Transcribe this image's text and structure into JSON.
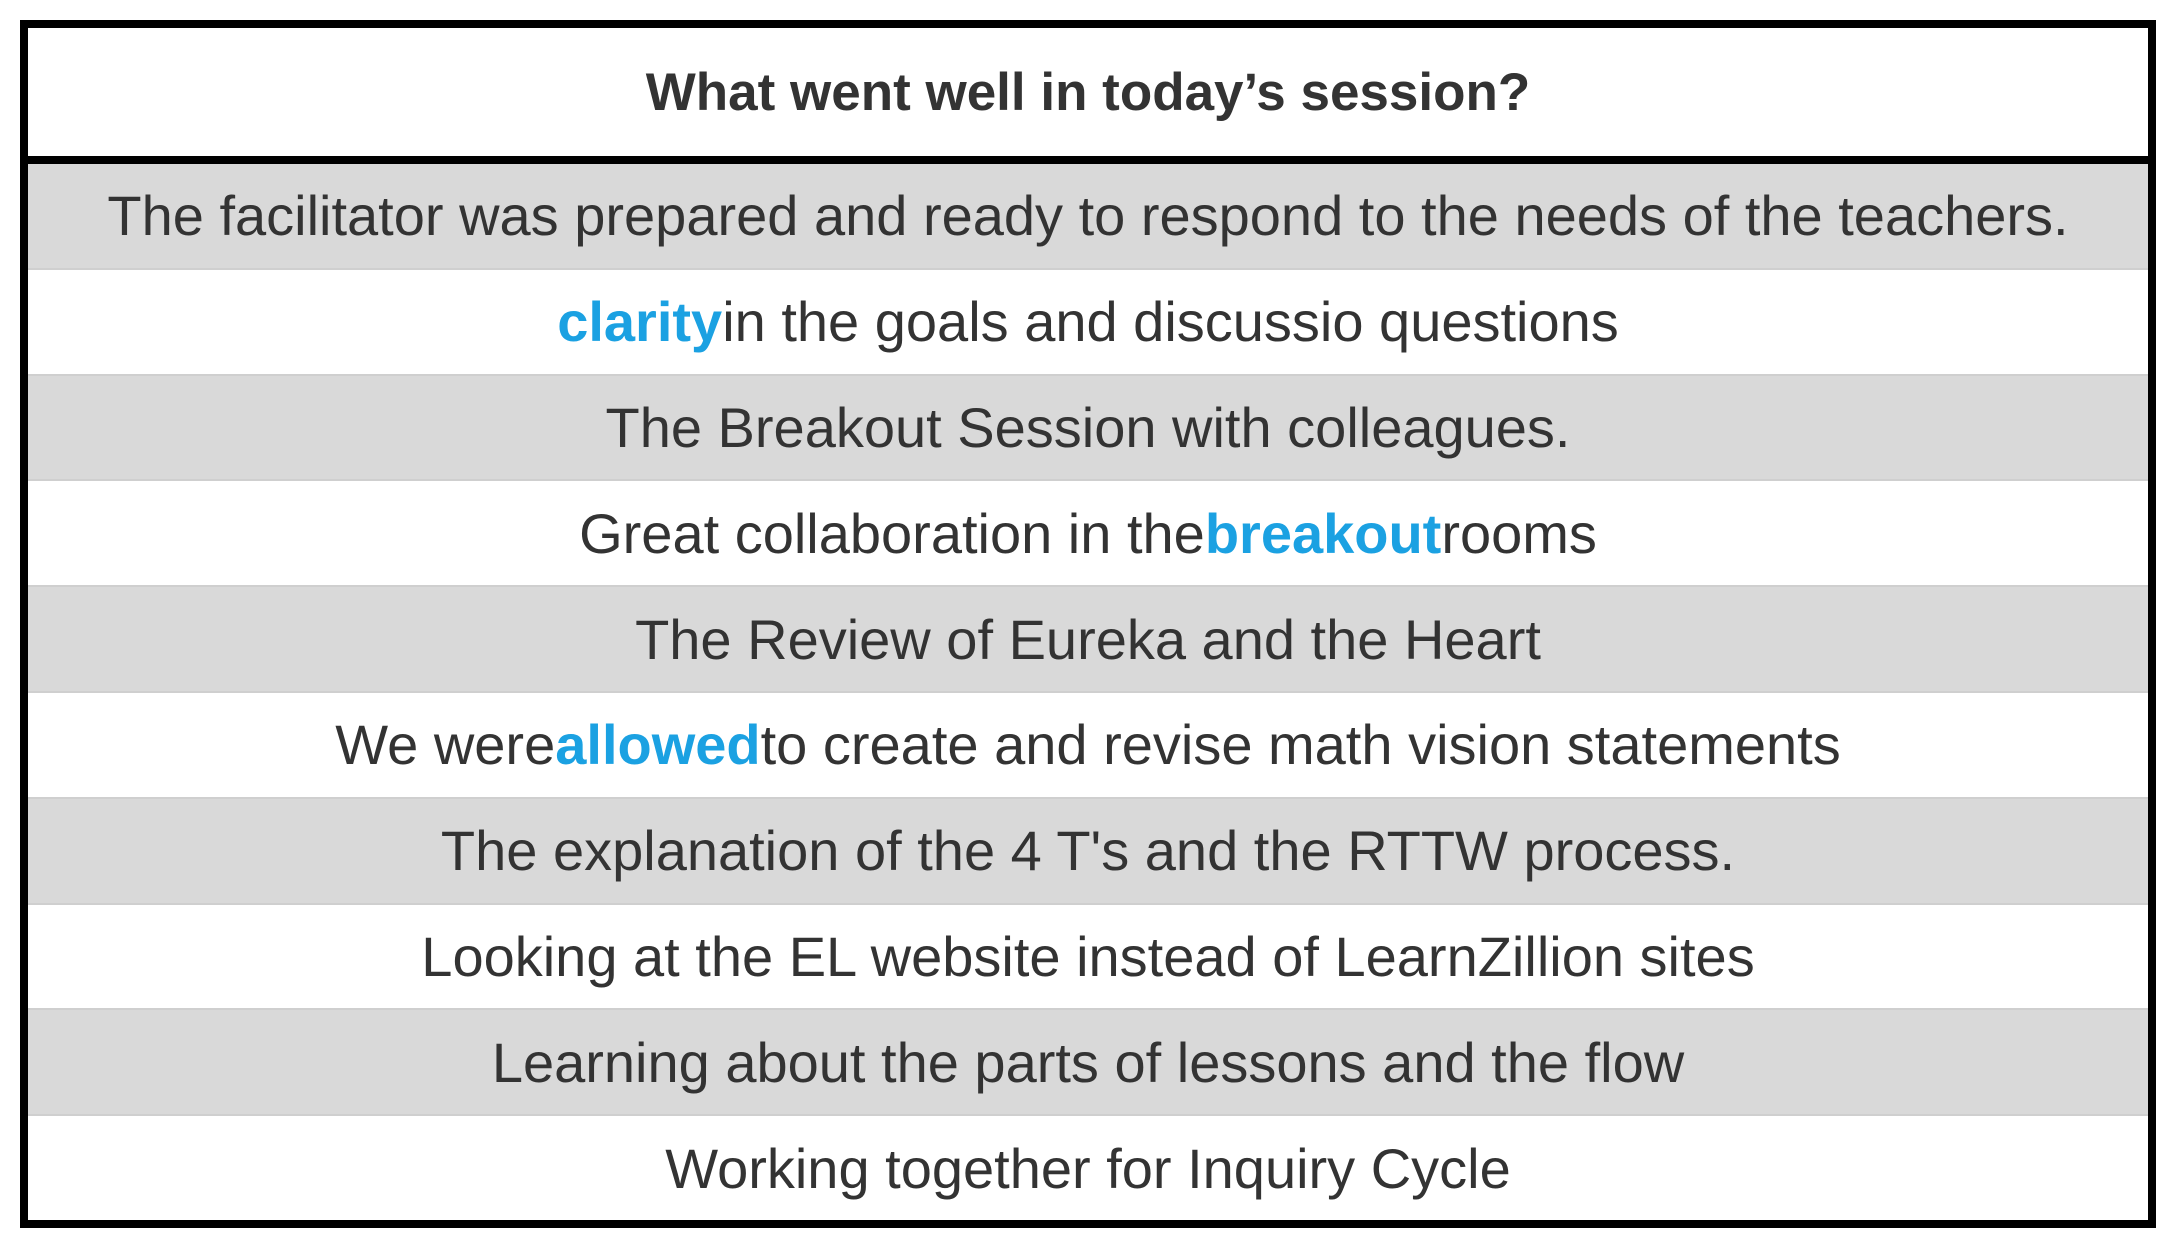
{
  "colors": {
    "border": "#000000",
    "text": "#333333",
    "highlight": "#1ba1e2",
    "shaded_row": "#d9d9d9",
    "plain_row": "#ffffff"
  },
  "table": {
    "title": "What went well in today’s session?",
    "rows": [
      {
        "before": "The facilitator was prepared and ready to respond to the needs of the teachers.",
        "highlight": "",
        "after": ""
      },
      {
        "before": "",
        "highlight": "clarity",
        "after": " in the goals and discussio questions"
      },
      {
        "before": "The Breakout Session with colleagues.",
        "highlight": "",
        "after": ""
      },
      {
        "before": "Great collaboration in the ",
        "highlight": "breakout",
        "after": " rooms"
      },
      {
        "before": "The Review of Eureka and the Heart",
        "highlight": "",
        "after": ""
      },
      {
        "before": "We were ",
        "highlight": "allowed",
        "after": " to create and revise math vision statements"
      },
      {
        "before": "The explanation of the 4 T's and the RTTW process.",
        "highlight": "",
        "after": ""
      },
      {
        "before": "Looking at the EL website instead of LearnZillion sites",
        "highlight": "",
        "after": ""
      },
      {
        "before": "Learning about the parts of lessons and the flow",
        "highlight": "",
        "after": ""
      },
      {
        "before": "Working together for Inquiry Cycle",
        "highlight": "",
        "after": ""
      }
    ]
  }
}
